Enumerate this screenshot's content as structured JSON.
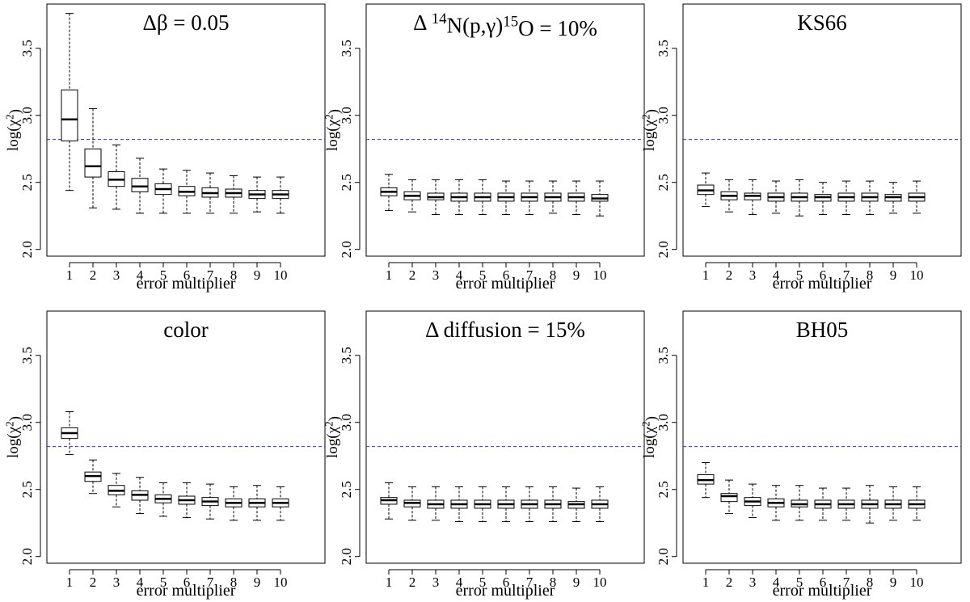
{
  "chart_data": [
    {
      "type": "boxplot",
      "title": "Δβ = 0.05",
      "title_parts": [
        {
          "t": "Δβ = 0.05"
        }
      ],
      "xlabel": "error multiplier",
      "ylabel": "log(χ²)",
      "ylabel_parts": [
        {
          "t": "log(χ"
        },
        {
          "t": "2",
          "sup": true
        },
        {
          "t": ")"
        }
      ],
      "categories": [
        "1",
        "2",
        "3",
        "4",
        "5",
        "6",
        "7",
        "8",
        "9",
        "10"
      ],
      "yticks": [
        "2.0",
        "2.5",
        "3.0",
        "3.5"
      ],
      "ylim": [
        1.95,
        3.83
      ],
      "reference_line": 2.82,
      "boxes": [
        {
          "min": 2.44,
          "q1": 2.81,
          "median": 2.97,
          "q3": 3.19,
          "max": 3.76
        },
        {
          "min": 2.31,
          "q1": 2.54,
          "median": 2.62,
          "q3": 2.75,
          "max": 3.05
        },
        {
          "min": 2.3,
          "q1": 2.47,
          "median": 2.52,
          "q3": 2.58,
          "max": 2.78
        },
        {
          "min": 2.27,
          "q1": 2.43,
          "median": 2.47,
          "q3": 2.53,
          "max": 2.68
        },
        {
          "min": 2.27,
          "q1": 2.41,
          "median": 2.45,
          "q3": 2.49,
          "max": 2.6
        },
        {
          "min": 2.27,
          "q1": 2.4,
          "median": 2.43,
          "q3": 2.47,
          "max": 2.59
        },
        {
          "min": 2.27,
          "q1": 2.39,
          "median": 2.42,
          "q3": 2.46,
          "max": 2.57
        },
        {
          "min": 2.27,
          "q1": 2.39,
          "median": 2.42,
          "q3": 2.45,
          "max": 2.55
        },
        {
          "min": 2.28,
          "q1": 2.38,
          "median": 2.41,
          "q3": 2.44,
          "max": 2.54
        },
        {
          "min": 2.27,
          "q1": 2.38,
          "median": 2.41,
          "q3": 2.44,
          "max": 2.54
        }
      ]
    },
    {
      "type": "boxplot",
      "title": "Δ 14N(p,γ)15O = 10%",
      "title_parts": [
        {
          "t": "Δ "
        },
        {
          "t": "14",
          "sup": true
        },
        {
          "t": "N(p,γ)"
        },
        {
          "t": "15",
          "sup": true
        },
        {
          "t": "O = 10%"
        }
      ],
      "xlabel": "error multiplier",
      "ylabel": "log(χ²)",
      "ylabel_parts": [
        {
          "t": "log(χ"
        },
        {
          "t": "2",
          "sup": true
        },
        {
          "t": ")"
        }
      ],
      "categories": [
        "1",
        "2",
        "3",
        "4",
        "5",
        "6",
        "7",
        "8",
        "9",
        "10"
      ],
      "yticks": [
        "2.0",
        "2.5",
        "3.0",
        "3.5"
      ],
      "ylim": [
        1.95,
        3.83
      ],
      "reference_line": 2.82,
      "boxes": [
        {
          "min": 2.29,
          "q1": 2.4,
          "median": 2.43,
          "q3": 2.46,
          "max": 2.56
        },
        {
          "min": 2.28,
          "q1": 2.37,
          "median": 2.4,
          "q3": 2.43,
          "max": 2.52
        },
        {
          "min": 2.26,
          "q1": 2.37,
          "median": 2.39,
          "q3": 2.42,
          "max": 2.52
        },
        {
          "min": 2.26,
          "q1": 2.36,
          "median": 2.39,
          "q3": 2.42,
          "max": 2.52
        },
        {
          "min": 2.26,
          "q1": 2.36,
          "median": 2.39,
          "q3": 2.42,
          "max": 2.52
        },
        {
          "min": 2.26,
          "q1": 2.36,
          "median": 2.39,
          "q3": 2.42,
          "max": 2.51
        },
        {
          "min": 2.26,
          "q1": 2.36,
          "median": 2.39,
          "q3": 2.42,
          "max": 2.51
        },
        {
          "min": 2.27,
          "q1": 2.36,
          "median": 2.39,
          "q3": 2.42,
          "max": 2.51
        },
        {
          "min": 2.26,
          "q1": 2.36,
          "median": 2.39,
          "q3": 2.42,
          "max": 2.51
        },
        {
          "min": 2.25,
          "q1": 2.36,
          "median": 2.38,
          "q3": 2.41,
          "max": 2.51
        }
      ]
    },
    {
      "type": "boxplot",
      "title": "KS66",
      "title_parts": [
        {
          "t": "KS66"
        }
      ],
      "xlabel": "error multiplier",
      "ylabel": "log(χ²)",
      "ylabel_parts": [
        {
          "t": "log(χ"
        },
        {
          "t": "2",
          "sup": true
        },
        {
          "t": ")"
        }
      ],
      "categories": [
        "1",
        "2",
        "3",
        "4",
        "5",
        "6",
        "7",
        "8",
        "9",
        "10"
      ],
      "yticks": [
        "2.0",
        "2.5",
        "3.0",
        "3.5"
      ],
      "ylim": [
        1.95,
        3.83
      ],
      "reference_line": 2.82,
      "boxes": [
        {
          "min": 2.32,
          "q1": 2.41,
          "median": 2.44,
          "q3": 2.48,
          "max": 2.57
        },
        {
          "min": 2.28,
          "q1": 2.37,
          "median": 2.4,
          "q3": 2.43,
          "max": 2.52
        },
        {
          "min": 2.26,
          "q1": 2.37,
          "median": 2.4,
          "q3": 2.42,
          "max": 2.52
        },
        {
          "min": 2.27,
          "q1": 2.36,
          "median": 2.39,
          "q3": 2.42,
          "max": 2.51
        },
        {
          "min": 2.25,
          "q1": 2.36,
          "median": 2.39,
          "q3": 2.42,
          "max": 2.52
        },
        {
          "min": 2.26,
          "q1": 2.36,
          "median": 2.39,
          "q3": 2.41,
          "max": 2.5
        },
        {
          "min": 2.26,
          "q1": 2.36,
          "median": 2.39,
          "q3": 2.42,
          "max": 2.51
        },
        {
          "min": 2.26,
          "q1": 2.36,
          "median": 2.39,
          "q3": 2.42,
          "max": 2.51
        },
        {
          "min": 2.27,
          "q1": 2.36,
          "median": 2.39,
          "q3": 2.41,
          "max": 2.5
        },
        {
          "min": 2.27,
          "q1": 2.36,
          "median": 2.39,
          "q3": 2.42,
          "max": 2.51
        }
      ]
    },
    {
      "type": "boxplot",
      "title": "color",
      "title_parts": [
        {
          "t": "color"
        }
      ],
      "xlabel": "error multiplier",
      "ylabel": "log(χ²)",
      "ylabel_parts": [
        {
          "t": "log(χ"
        },
        {
          "t": "2",
          "sup": true
        },
        {
          "t": ")"
        }
      ],
      "categories": [
        "1",
        "2",
        "3",
        "4",
        "5",
        "6",
        "7",
        "8",
        "9",
        "10"
      ],
      "yticks": [
        "2.0",
        "2.5",
        "3.0",
        "3.5"
      ],
      "ylim": [
        1.95,
        3.83
      ],
      "reference_line": 2.82,
      "boxes": [
        {
          "min": 2.76,
          "q1": 2.88,
          "median": 2.92,
          "q3": 2.96,
          "max": 3.08
        },
        {
          "min": 2.47,
          "q1": 2.56,
          "median": 2.6,
          "q3": 2.63,
          "max": 2.72
        },
        {
          "min": 2.37,
          "q1": 2.46,
          "median": 2.49,
          "q3": 2.53,
          "max": 2.62
        },
        {
          "min": 2.32,
          "q1": 2.42,
          "median": 2.46,
          "q3": 2.49,
          "max": 2.59
        },
        {
          "min": 2.3,
          "q1": 2.4,
          "median": 2.43,
          "q3": 2.46,
          "max": 2.55
        },
        {
          "min": 2.29,
          "q1": 2.39,
          "median": 2.42,
          "q3": 2.45,
          "max": 2.55
        },
        {
          "min": 2.28,
          "q1": 2.38,
          "median": 2.41,
          "q3": 2.44,
          "max": 2.54
        },
        {
          "min": 2.27,
          "q1": 2.37,
          "median": 2.4,
          "q3": 2.43,
          "max": 2.52
        },
        {
          "min": 2.27,
          "q1": 2.37,
          "median": 2.4,
          "q3": 2.43,
          "max": 2.53
        },
        {
          "min": 2.27,
          "q1": 2.37,
          "median": 2.4,
          "q3": 2.43,
          "max": 2.52
        }
      ]
    },
    {
      "type": "boxplot",
      "title": "Δ diffusion = 15%",
      "title_parts": [
        {
          "t": "Δ diffusion = 15%"
        }
      ],
      "xlabel": "error multiplier",
      "ylabel": "log(χ²)",
      "ylabel_parts": [
        {
          "t": "log(χ"
        },
        {
          "t": "2",
          "sup": true
        },
        {
          "t": ")"
        }
      ],
      "categories": [
        "1",
        "2",
        "3",
        "4",
        "5",
        "6",
        "7",
        "8",
        "9",
        "10"
      ],
      "yticks": [
        "2.0",
        "2.5",
        "3.0",
        "3.5"
      ],
      "ylim": [
        1.95,
        3.83
      ],
      "reference_line": 2.82,
      "boxes": [
        {
          "min": 2.28,
          "q1": 2.39,
          "median": 2.42,
          "q3": 2.44,
          "max": 2.55
        },
        {
          "min": 2.27,
          "q1": 2.37,
          "median": 2.4,
          "q3": 2.42,
          "max": 2.52
        },
        {
          "min": 2.27,
          "q1": 2.36,
          "median": 2.39,
          "q3": 2.42,
          "max": 2.52
        },
        {
          "min": 2.26,
          "q1": 2.36,
          "median": 2.39,
          "q3": 2.42,
          "max": 2.52
        },
        {
          "min": 2.26,
          "q1": 2.36,
          "median": 2.39,
          "q3": 2.42,
          "max": 2.52
        },
        {
          "min": 2.26,
          "q1": 2.36,
          "median": 2.39,
          "q3": 2.42,
          "max": 2.52
        },
        {
          "min": 2.26,
          "q1": 2.36,
          "median": 2.39,
          "q3": 2.42,
          "max": 2.52
        },
        {
          "min": 2.26,
          "q1": 2.36,
          "median": 2.39,
          "q3": 2.42,
          "max": 2.52
        },
        {
          "min": 2.26,
          "q1": 2.36,
          "median": 2.39,
          "q3": 2.41,
          "max": 2.51
        },
        {
          "min": 2.26,
          "q1": 2.36,
          "median": 2.39,
          "q3": 2.42,
          "max": 2.52
        }
      ]
    },
    {
      "type": "boxplot",
      "title": "BH05",
      "title_parts": [
        {
          "t": "BH05"
        }
      ],
      "xlabel": "error multiplier",
      "ylabel": "log(χ²)",
      "ylabel_parts": [
        {
          "t": "log(χ"
        },
        {
          "t": "2",
          "sup": true
        },
        {
          "t": ")"
        }
      ],
      "categories": [
        "1",
        "2",
        "3",
        "4",
        "5",
        "6",
        "7",
        "8",
        "9",
        "10"
      ],
      "yticks": [
        "2.0",
        "2.5",
        "3.0",
        "3.5"
      ],
      "ylim": [
        1.95,
        3.83
      ],
      "reference_line": 2.82,
      "boxes": [
        {
          "min": 2.44,
          "q1": 2.54,
          "median": 2.57,
          "q3": 2.61,
          "max": 2.7
        },
        {
          "min": 2.32,
          "q1": 2.41,
          "median": 2.45,
          "q3": 2.47,
          "max": 2.57
        },
        {
          "min": 2.29,
          "q1": 2.38,
          "median": 2.41,
          "q3": 2.44,
          "max": 2.54
        },
        {
          "min": 2.27,
          "q1": 2.37,
          "median": 2.4,
          "q3": 2.43,
          "max": 2.53
        },
        {
          "min": 2.27,
          "q1": 2.37,
          "median": 2.39,
          "q3": 2.42,
          "max": 2.53
        },
        {
          "min": 2.27,
          "q1": 2.36,
          "median": 2.39,
          "q3": 2.42,
          "max": 2.51
        },
        {
          "min": 2.27,
          "q1": 2.36,
          "median": 2.39,
          "q3": 2.42,
          "max": 2.51
        },
        {
          "min": 2.25,
          "q1": 2.36,
          "median": 2.39,
          "q3": 2.42,
          "max": 2.53
        },
        {
          "min": 2.27,
          "q1": 2.36,
          "median": 2.39,
          "q3": 2.42,
          "max": 2.52
        },
        {
          "min": 2.27,
          "q1": 2.36,
          "median": 2.39,
          "q3": 2.42,
          "max": 2.52
        }
      ]
    }
  ],
  "colors": {
    "reference_line": "#3333cc",
    "axes": "#000000",
    "box_fill": "#ffffff"
  }
}
